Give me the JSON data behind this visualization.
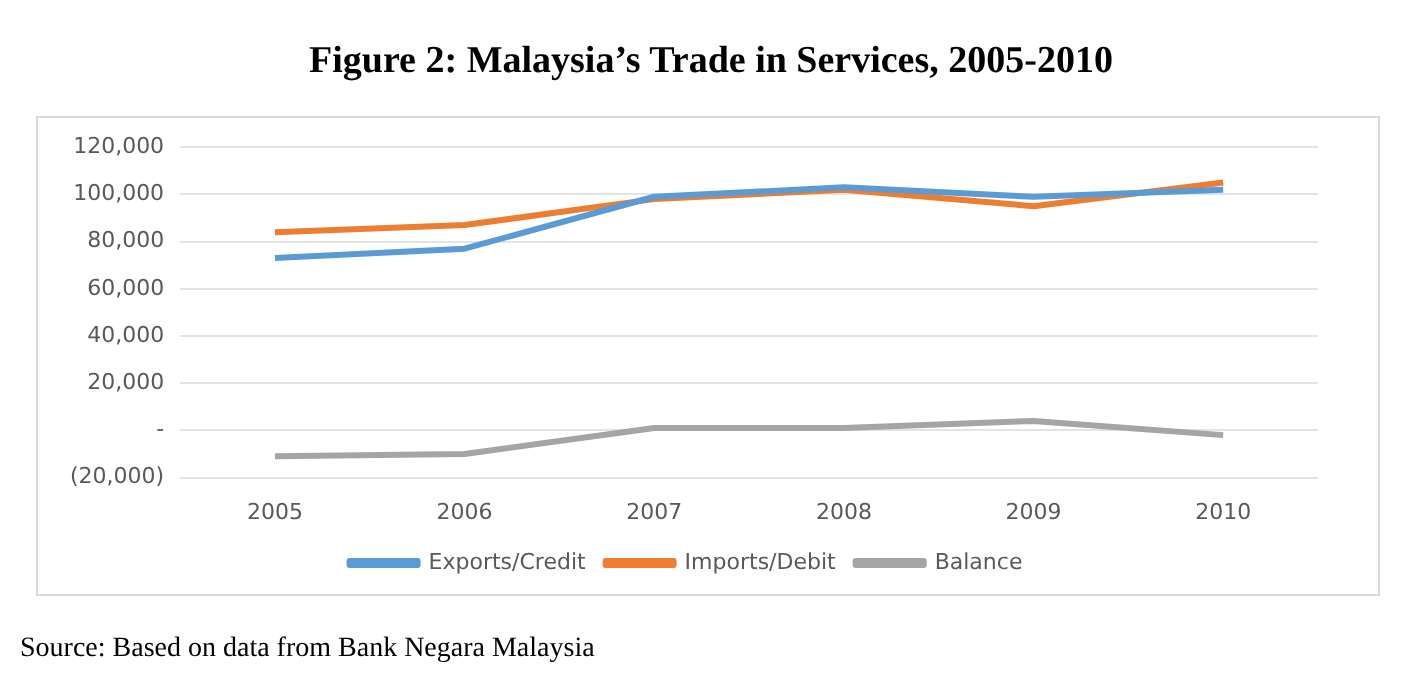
{
  "chart_data": {
    "type": "line",
    "title": "Figure 2: Malaysia’s Trade in Services, 2005-2010",
    "categories": [
      "2005",
      "2006",
      "2007",
      "2008",
      "2009",
      "2010"
    ],
    "series": [
      {
        "name": "Exports/Credit",
        "color": "#5b9bd5",
        "values": [
          73000,
          77000,
          99000,
          103000,
          99000,
          102000
        ]
      },
      {
        "name": "Imports/Debit",
        "color": "#ed7d31",
        "values": [
          84000,
          87000,
          98000,
          102000,
          95000,
          105000
        ]
      },
      {
        "name": "Balance",
        "color": "#a5a5a5",
        "values": [
          -11000,
          -10000,
          1000,
          1000,
          4000,
          -2000
        ]
      }
    ],
    "ylim": [
      -20000,
      120000
    ],
    "yticks": [
      {
        "value": -20000,
        "label": "(20,000)"
      },
      {
        "value": 0,
        "label": "-"
      },
      {
        "value": 20000,
        "label": "20,000"
      },
      {
        "value": 40000,
        "label": "40,000"
      },
      {
        "value": 60000,
        "label": "60,000"
      },
      {
        "value": 80000,
        "label": "80,000"
      },
      {
        "value": 100000,
        "label": "100,000"
      },
      {
        "value": 120000,
        "label": "120,000"
      }
    ],
    "grid": "y",
    "legend": "bottom",
    "marker": "none",
    "line_style": "solid",
    "annotations": [
      "Source: Based on data from Bank Negara Malaysia"
    ]
  }
}
